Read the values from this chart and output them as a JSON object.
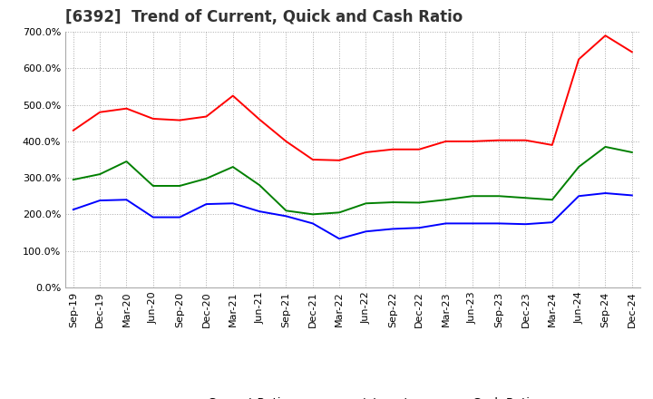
{
  "title": "[6392]  Trend of Current, Quick and Cash Ratio",
  "x_labels": [
    "Sep-19",
    "Dec-19",
    "Mar-20",
    "Jun-20",
    "Sep-20",
    "Dec-20",
    "Mar-21",
    "Jun-21",
    "Sep-21",
    "Dec-21",
    "Mar-22",
    "Jun-22",
    "Sep-22",
    "Dec-22",
    "Mar-23",
    "Jun-23",
    "Sep-23",
    "Dec-23",
    "Mar-24",
    "Jun-24",
    "Sep-24",
    "Dec-24"
  ],
  "current_ratio": [
    430,
    480,
    490,
    462,
    458,
    468,
    525,
    460,
    400,
    350,
    348,
    370,
    378,
    378,
    400,
    400,
    403,
    403,
    390,
    625,
    690,
    645
  ],
  "quick_ratio": [
    295,
    310,
    345,
    278,
    278,
    298,
    330,
    280,
    210,
    200,
    205,
    230,
    233,
    232,
    240,
    250,
    250,
    245,
    240,
    330,
    385,
    370
  ],
  "cash_ratio": [
    213,
    238,
    240,
    192,
    192,
    228,
    230,
    208,
    195,
    175,
    133,
    153,
    160,
    163,
    175,
    175,
    175,
    173,
    178,
    250,
    258,
    252
  ],
  "current_color": "#FF0000",
  "quick_color": "#008000",
  "cash_color": "#0000FF",
  "background_color": "#FFFFFF",
  "grid_color": "#AAAAAA",
  "ylim": [
    0,
    700
  ],
  "yticks": [
    0,
    100,
    200,
    300,
    400,
    500,
    600,
    700
  ],
  "title_fontsize": 12,
  "legend_fontsize": 9.5,
  "tick_fontsize": 8
}
